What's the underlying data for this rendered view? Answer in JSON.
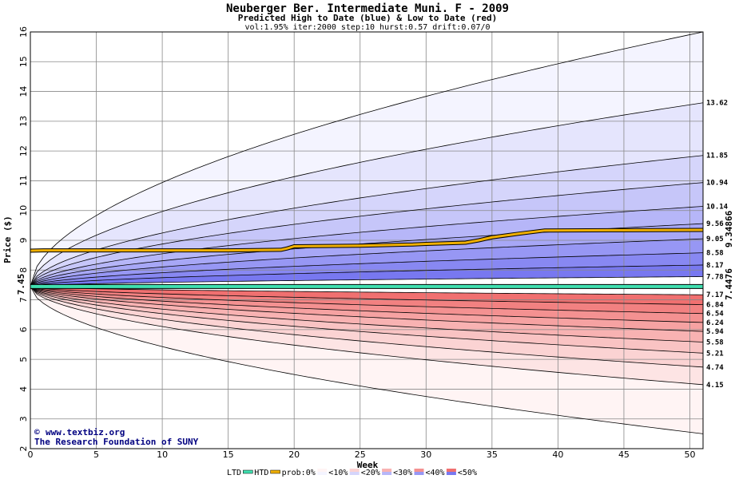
{
  "chart_data": {
    "type": "area",
    "title": "Neuberger Ber. Intermediate Muni. F - 2009",
    "subtitle": "Predicted High to Date (blue) &  Low to Date (red)",
    "params": "vol:1.95% iter:2000 step:10 hurst:0.57 drift:0.07/0",
    "xlabel": "Week",
    "ylabel": "Price ($)",
    "xlim": [
      0,
      51
    ],
    "ylim": [
      2,
      16
    ],
    "xticks": [
      "0",
      "5",
      "10",
      "15",
      "20",
      "25",
      "30",
      "35",
      "40",
      "45",
      "50"
    ],
    "yticks": [
      "2",
      "3",
      "4",
      "5",
      "6",
      "7",
      "8",
      "9",
      "10",
      "11",
      "12",
      "13",
      "14",
      "15",
      "16"
    ],
    "grid": true,
    "start_price": 7.45,
    "start_label": "7.45",
    "end_labels": [
      "13.62",
      "11.85",
      "10.94",
      "10.14",
      "9.56",
      "9.05",
      "8.58",
      "8.17",
      "7.78",
      "7.17",
      "6.84",
      "6.54",
      "6.24",
      "5.94",
      "5.58",
      "5.21",
      "4.74",
      "4.15"
    ],
    "high_quantiles": [
      {
        "prob": "0%",
        "end": 16.0
      },
      {
        "prob": "10%",
        "end": 13.62
      },
      {
        "prob": "20%",
        "end": 11.85
      },
      {
        "prob": "30%",
        "end": 10.94
      },
      {
        "prob": "40%",
        "end": 10.14
      },
      {
        "prob": "50%",
        "end": 9.56
      },
      {
        "prob": "60%",
        "end": 9.05
      },
      {
        "prob": "70%",
        "end": 8.58
      },
      {
        "prob": "80%",
        "end": 8.17
      },
      {
        "prob": "90%",
        "end": 7.78
      }
    ],
    "low_quantiles": [
      {
        "prob": "90%",
        "end": 7.17
      },
      {
        "prob": "80%",
        "end": 6.84
      },
      {
        "prob": "70%",
        "end": 6.54
      },
      {
        "prob": "60%",
        "end": 6.24
      },
      {
        "prob": "50%",
        "end": 5.94
      },
      {
        "prob": "40%",
        "end": 5.58
      },
      {
        "prob": "30%",
        "end": 5.21
      },
      {
        "prob": "20%",
        "end": 4.74
      },
      {
        "prob": "10%",
        "end": 4.15
      },
      {
        "prob": "0%",
        "end": 2.5
      }
    ],
    "htd_series": {
      "name": "HTD",
      "end_label": "9.34866",
      "x": [
        0,
        1,
        5,
        10,
        15,
        19,
        19.5,
        20,
        25,
        29,
        30,
        33,
        34,
        35,
        37,
        39,
        45,
        51
      ],
      "y": [
        8.65,
        8.66,
        8.66,
        8.66,
        8.66,
        8.68,
        8.73,
        8.8,
        8.82,
        8.86,
        8.88,
        8.92,
        9.0,
        9.1,
        9.22,
        9.33,
        9.34,
        9.35
      ]
    },
    "ltd_series": {
      "name": "LTD",
      "value": 7.4476,
      "end_label": "7.4476"
    },
    "colors": {
      "high_band_light": "#f4f4ff",
      "high_band_dark": "#7878f0",
      "low_band_light": "#fff4f4",
      "low_band_dark": "#f07070",
      "htd_line": "#f0b000",
      "ltd_line": "#40e0b0",
      "axis_label_green": "#008060",
      "axis_label_gold": "#a07800"
    },
    "legend": {
      "ltd": "LTD",
      "htd": "HTD",
      "prob": "prob:0%",
      "b10": "<10%",
      "b20": "<20%",
      "b30": "<30%",
      "b40": "<40%",
      "b50": "<50%"
    }
  },
  "credits": {
    "site": "www.textbiz.org",
    "copyright_symbol": "©",
    "org": "The Research Foundation of SUNY"
  }
}
